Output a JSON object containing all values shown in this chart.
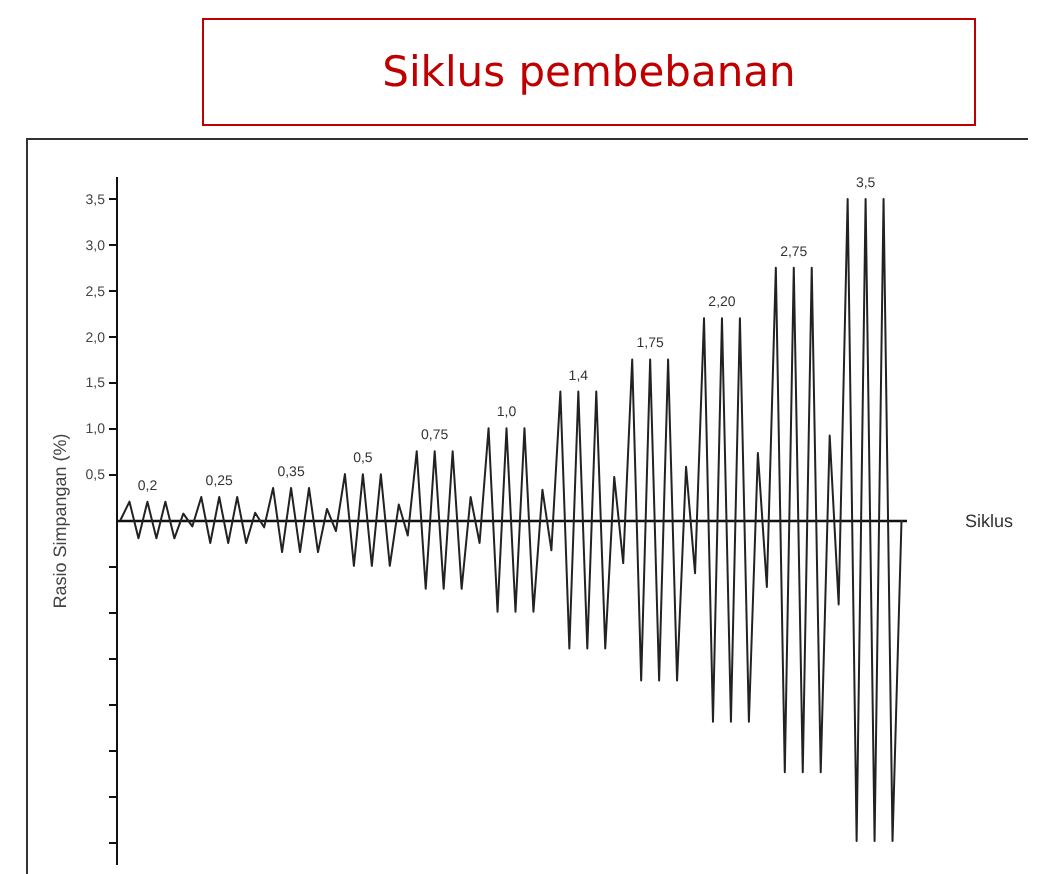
{
  "chart_data": {
    "type": "line",
    "title": "Siklus pembebanan",
    "xlabel": "Siklus",
    "ylabel": "Rasio Simpangan (%)",
    "categories": [
      null,
      null,
      null,
      null,
      null,
      null,
      null,
      null,
      null,
      null,
      null,
      null,
      null,
      null,
      null,
      null,
      null,
      null,
      null,
      null,
      null,
      null,
      null,
      null,
      null,
      null,
      null,
      null,
      null,
      null,
      null,
      null,
      null,
      null,
      null,
      null,
      null,
      null,
      null,
      null,
      null,
      null,
      null,
      null,
      null,
      null,
      null,
      null,
      null,
      null,
      null,
      null,
      null,
      null,
      null,
      null,
      null,
      null,
      null,
      null,
      null,
      null,
      null,
      null,
      null,
      null,
      null,
      null,
      null,
      null,
      null,
      null,
      null,
      null,
      null,
      null,
      null,
      null,
      null,
      null,
      null,
      null,
      null,
      null,
      null,
      null,
      null,
      null
    ],
    "series": [
      {
        "color": "#222222",
        "values": [
          0,
          0.2,
          -0.2,
          0.2,
          -0.2,
          0.2,
          -0.2,
          0.07,
          -0.07,
          0.25,
          -0.25,
          0.25,
          -0.25,
          0.25,
          -0.25,
          0.08,
          -0.08,
          0.35,
          -0.35,
          0.35,
          -0.35,
          0.35,
          -0.35,
          0.12,
          -0.12,
          0.5,
          -0.5,
          0.5,
          -0.5,
          0.5,
          -0.5,
          0.17,
          -0.17,
          0.75,
          -0.75,
          0.75,
          -0.75,
          0.75,
          -0.75,
          0.25,
          -0.25,
          1.0,
          -1.0,
          1.0,
          -1.0,
          1.0,
          -1.0,
          0.33,
          -0.33,
          1.4,
          -1.4,
          1.4,
          -1.4,
          1.4,
          -1.4,
          0.47,
          -0.47,
          1.75,
          -1.75,
          1.75,
          -1.75,
          1.75,
          -1.75,
          0.58,
          -0.58,
          2.2,
          -2.2,
          2.2,
          -2.2,
          2.2,
          -2.2,
          0.73,
          -0.73,
          2.75,
          -2.75,
          2.75,
          -2.75,
          2.75,
          -2.75,
          0.92,
          -0.92,
          3.5,
          -3.5,
          3.5,
          -3.5,
          3.5,
          -3.5,
          0
        ]
      }
    ],
    "ylim": [
      -3.75,
      3.75
    ],
    "yticks": [
      {
        "value": -3.5,
        "label": null
      },
      {
        "value": -3.0,
        "label": null
      },
      {
        "value": -2.5,
        "label": null
      },
      {
        "value": -2.0,
        "label": null
      },
      {
        "value": -1.5,
        "label": null
      },
      {
        "value": -1.0,
        "label": null
      },
      {
        "value": -0.5,
        "label": null
      },
      {
        "value": 0.5,
        "label": "0,5"
      },
      {
        "value": 1.0,
        "label": "1,0"
      },
      {
        "value": 1.5,
        "label": "1,5"
      },
      {
        "value": 2.0,
        "label": "2,0"
      },
      {
        "value": 2.5,
        "label": "2,5"
      },
      {
        "value": 3.0,
        "label": "3,0"
      },
      {
        "value": 3.5,
        "label": "3,5"
      }
    ],
    "annotations": [
      {
        "text": "0,2",
        "y": 0.2
      },
      {
        "text": "0,25",
        "y": 0.25
      },
      {
        "text": "0,35",
        "y": 0.35
      },
      {
        "text": "0,5",
        "y": 0.5
      },
      {
        "text": "0,75",
        "y": 0.75
      },
      {
        "text": "1,0",
        "y": 1.0
      },
      {
        "text": "1,4",
        "y": 1.4
      },
      {
        "text": "1,75",
        "y": 1.75
      },
      {
        "text": "2,20",
        "y": 2.2
      },
      {
        "text": "2,75",
        "y": 2.75
      },
      {
        "text": "3,5",
        "y": 3.5
      }
    ],
    "grid": false,
    "marker": "none",
    "line_style": "solid"
  }
}
